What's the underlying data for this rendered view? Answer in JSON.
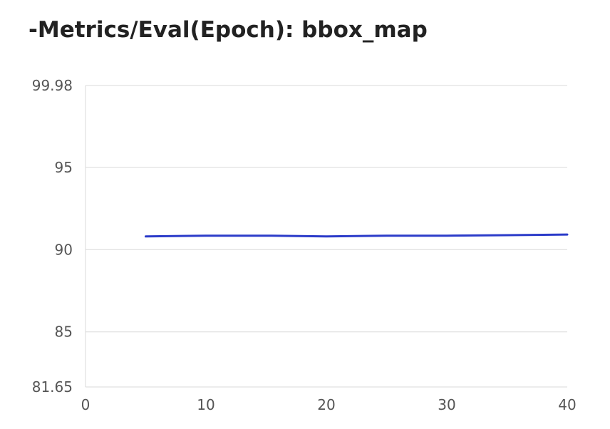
{
  "chart_data": {
    "type": "line",
    "title": "-Metrics/Eval(Epoch): bbox_map",
    "xlabel": "",
    "ylabel": "",
    "xlim": [
      0,
      40
    ],
    "ylim": [
      81.65,
      99.98
    ],
    "x_ticks": [
      0,
      10,
      20,
      30,
      40
    ],
    "y_ticks": [
      81.65,
      85,
      90,
      95,
      99.98
    ],
    "y_tick_labels": [
      "81.65",
      "85",
      "90",
      "95",
      "99.98"
    ],
    "grid": true,
    "series": [
      {
        "color": "#2b3bc9",
        "x": [
          5,
          10,
          15,
          20,
          25,
          30,
          35,
          40
        ],
        "y": [
          90.8,
          90.85,
          90.85,
          90.8,
          90.85,
          90.85,
          90.88,
          90.92
        ]
      }
    ]
  }
}
